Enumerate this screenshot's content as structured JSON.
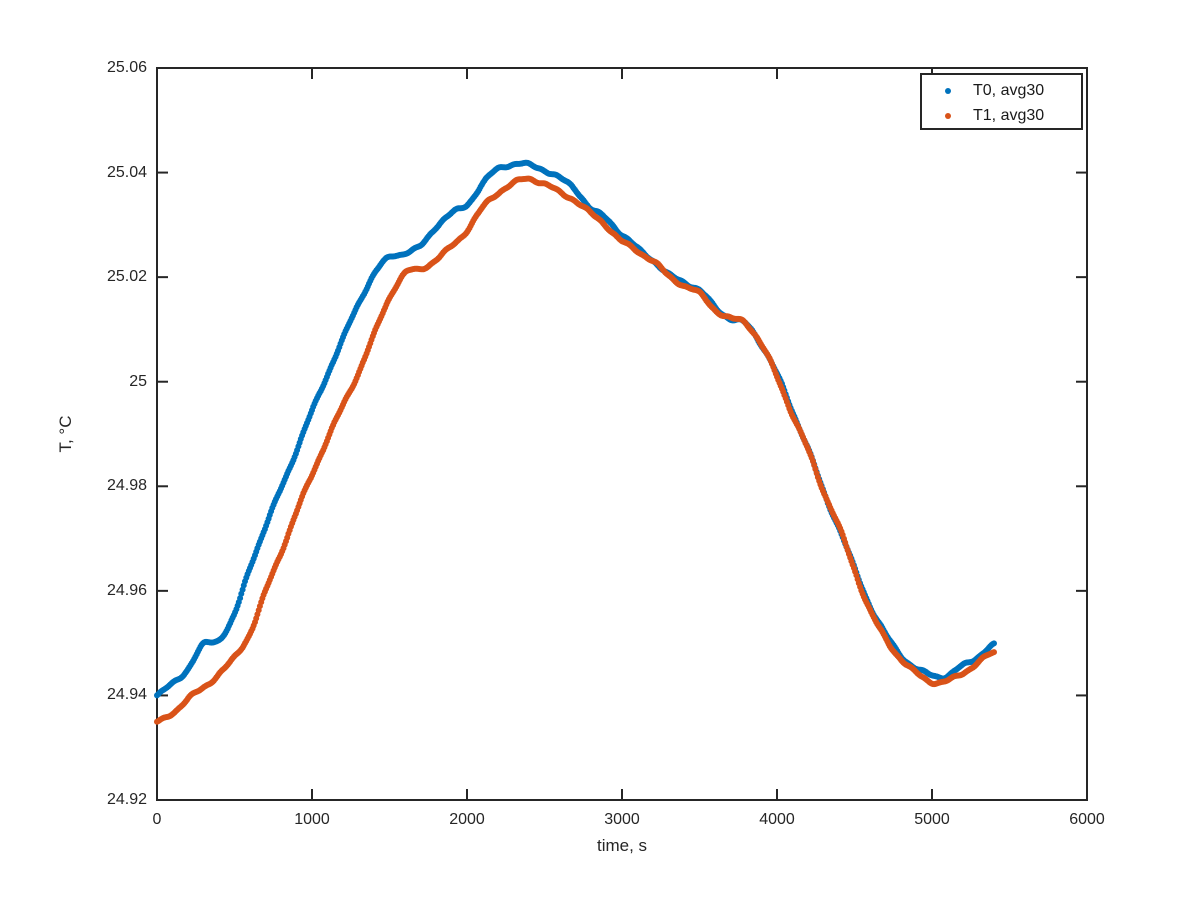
{
  "figure": {
    "background": "#ffffff",
    "axes_color": "#262626"
  },
  "axes": {
    "xlabel": "time, s",
    "ylabel": "T, °C",
    "xlim": [
      0,
      6000
    ],
    "ylim": [
      24.92,
      25.06
    ],
    "xticks": [
      0,
      1000,
      2000,
      3000,
      4000,
      5000,
      6000
    ],
    "xtick_labels": [
      "0",
      "1000",
      "2000",
      "3000",
      "4000",
      "5000",
      "6000"
    ],
    "yticks": [
      24.92,
      24.94,
      24.96,
      24.98,
      25,
      25.02,
      25.04,
      25.06
    ],
    "ytick_labels": [
      "24.92",
      "24.94",
      "24.96",
      "24.98",
      "25",
      "25.02",
      "25.04",
      "25.06"
    ]
  },
  "legend": {
    "position": "top-right",
    "entries": [
      {
        "label": "T0, avg30",
        "color": "#0072BD"
      },
      {
        "label": "T1, avg30",
        "color": "#D95319"
      }
    ]
  },
  "chart_data": {
    "type": "scatter",
    "title": "",
    "xlabel": "time, s",
    "ylabel": "T, °C",
    "xlim": [
      0,
      6000
    ],
    "ylim": [
      24.92,
      25.06
    ],
    "grid": false,
    "legend_position": "top-right",
    "marker": "dot",
    "x": [
      0,
      100,
      200,
      300,
      400,
      500,
      600,
      700,
      800,
      900,
      1000,
      1100,
      1200,
      1300,
      1400,
      1500,
      1600,
      1700,
      1800,
      1900,
      2000,
      2100,
      2200,
      2300,
      2400,
      2500,
      2600,
      2700,
      2800,
      2900,
      3000,
      3100,
      3200,
      3300,
      3400,
      3500,
      3600,
      3700,
      3800,
      3900,
      4000,
      4100,
      4200,
      4300,
      4400,
      4500,
      4600,
      4700,
      4800,
      4900,
      5000,
      5100,
      5200,
      5300,
      5400
    ],
    "series": [
      {
        "name": "T0, avg30",
        "color": "#0072BD",
        "values": [
          24.94,
          24.9421,
          24.945,
          24.9497,
          24.951,
          24.9555,
          24.9645,
          24.972,
          24.9795,
          24.987,
          24.9945,
          25.0015,
          25.008,
          25.0148,
          25.0205,
          25.024,
          25.0248,
          25.0258,
          25.0295,
          25.032,
          25.034,
          25.038,
          25.0408,
          25.0415,
          25.0412,
          25.0405,
          25.039,
          25.037,
          25.033,
          25.031,
          25.028,
          25.0255,
          25.0235,
          25.0205,
          25.019,
          25.0172,
          25.0142,
          25.0122,
          25.0112,
          25.0072,
          25.0012,
          24.9942,
          24.9872,
          24.9792,
          24.9722,
          24.9642,
          24.957,
          24.9515,
          24.9478,
          24.9452,
          24.944,
          24.9436,
          24.9455,
          24.9475,
          24.9497
        ]
      },
      {
        "name": "T1, avg30",
        "color": "#D95319",
        "values": [
          24.9347,
          24.9368,
          24.9395,
          24.9415,
          24.944,
          24.947,
          24.952,
          24.96,
          24.9675,
          24.975,
          24.982,
          24.989,
          24.9955,
          25.002,
          25.009,
          25.016,
          25.0205,
          25.0215,
          25.0235,
          25.026,
          25.029,
          25.033,
          25.036,
          25.038,
          25.039,
          25.038,
          25.036,
          25.0345,
          25.032,
          25.03,
          25.027,
          25.025,
          25.023,
          25.02,
          25.0185,
          25.017,
          25.014,
          25.012,
          25.011,
          25.007,
          25.001,
          24.994,
          24.987,
          24.979,
          24.972,
          24.964,
          24.9565,
          24.951,
          24.947,
          24.944,
          24.9425,
          24.9428,
          24.9445,
          24.9465,
          24.948
        ]
      }
    ]
  }
}
